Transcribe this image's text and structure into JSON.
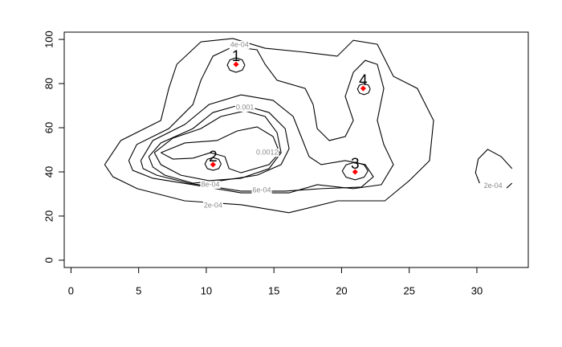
{
  "chart_data": {
    "type": "contour",
    "xlim": [
      -0.5,
      33.8
    ],
    "ylim": [
      -3.3,
      103.3
    ],
    "xticks": [
      0,
      5,
      10,
      15,
      20,
      25,
      30
    ],
    "yticks": [
      0,
      20,
      40,
      60,
      80,
      100
    ],
    "contours": [
      {
        "label": "2e-04",
        "label_x": 10.5,
        "label_y": 24.7,
        "paths": [
          {
            "x": [
              2.49,
              3.68,
              6.64,
              7.23,
              7.82,
              9.6,
              11.97,
              14.35,
              17.3,
              19.68,
              20.87,
              22.64,
              23.83,
              25.6,
              26.8,
              26.5,
              25.0,
              23.2,
              19.7,
              16.1,
              12.6,
              8.4,
              4.9,
              3.1,
              2.49
            ],
            "y": [
              43.3,
              54.2,
              63.3,
              77.8,
              88.7,
              98.9,
              100.4,
              96,
              94.2,
              92.4,
              99.6,
              97.8,
              83.3,
              77.8,
              63.3,
              45.1,
              36,
              26.9,
              26.9,
              21.5,
              25.1,
              26.9,
              32.4,
              37.8,
              43.3
            ]
          }
        ]
      },
      {
        "label": "2e-04",
        "label_x": 31.2,
        "label_y": 33.5,
        "paths": [
          {
            "x": [
              32.6,
              31.8,
              30.8,
              30.1,
              29.9,
              30.2
            ],
            "y": [
              41.5,
              46.9,
              50.2,
              45.8,
              39.6,
              34.9
            ]
          },
          {
            "x": [
              32.2,
              32.6
            ],
            "y": [
              32.7,
              34.9
            ]
          }
        ]
      },
      {
        "label": "4e-04",
        "label_x": 12.45,
        "label_y": 97.5,
        "paths": [
          {
            "x": [
              4.27,
              4.86,
              7.23,
              9.01,
              9.6,
              10.49,
              11.97,
              13.75,
              14.35,
              15.23,
              17.31,
              17.9,
              18.2,
              19.09,
              20.27,
              20.87,
              20.27,
              20.87,
              21.75,
              22.64,
              23.12,
              22.64,
              23.12,
              23.83,
              22.94,
              20.87,
              18.2,
              16.12,
              12.57,
              9.01,
              6.05,
              4.56,
              4.27
            ],
            "y": [
              45.1,
              52.4,
              59.6,
              70.5,
              81.5,
              92.4,
              96.7,
              95.3,
              88.7,
              81.5,
              77.8,
              70.5,
              59.6,
              54.2,
              56,
              63.3,
              74.2,
              85.1,
              90.5,
              88.7,
              77.8,
              63.3,
              52.4,
              43.3,
              34.2,
              32.4,
              34.2,
              30.5,
              30.5,
              34.2,
              37.1,
              40.7,
              45.1
            ]
          }
        ]
      },
      {
        "label": "6e-04",
        "label_x": 14.1,
        "label_y": 31.6,
        "paths": [
          {
            "x": [
              5.16,
              6.05,
              8.42,
              10.2,
              12.57,
              14.94,
              16.42,
              17.01,
              17.6,
              18.49,
              20.27,
              21.75,
              22.35,
              21.46,
              18.49,
              15.83,
              12.57,
              8.71,
              6.34,
              5.33,
              5.16
            ],
            "y": [
              45.1,
              54.2,
              61.5,
              70.5,
              74.9,
              72.4,
              65.1,
              56,
              46.9,
              43.3,
              45.1,
              43.3,
              37.8,
              33.1,
              32.4,
              31.3,
              31.3,
              34.9,
              38.5,
              41.5,
              45.1
            ]
          }
        ]
      },
      {
        "label": "8e-04",
        "label_x": 10.3,
        "label_y": 34.2,
        "paths": [
          {
            "x": [
              5.75,
              6.64,
              9.01,
              10.49,
              12.57,
              14.64,
              15.83,
              16.12,
              15.53,
              13.75,
              11.08,
              9.01,
              6.94,
              6.05,
              5.75
            ],
            "y": [
              46.9,
              53.1,
              59.6,
              66.9,
              70.5,
              66.9,
              59.6,
              50.5,
              43.3,
              38.5,
              36,
              34.9,
              38.5,
              42.2,
              46.9
            ]
          }
        ]
      },
      {
        "label": "0.001",
        "label_x": 12.86,
        "label_y": 69.1,
        "paths": [
          {
            "x": [
              6.16,
              7.53,
              9.6,
              11.08,
              12.86,
              14.35,
              15.23,
              15.53,
              14.64,
              12.57,
              10.2,
              8.12,
              6.64,
              6.16
            ],
            "y": [
              48.7,
              55.3,
              59.6,
              65.1,
              67.6,
              65.1,
              57.8,
              48.7,
              41.5,
              37.1,
              36,
              38.5,
              43.3,
              48.7
            ]
          }
        ]
      },
      {
        "label": "0.0012",
        "label_x": 14.5,
        "label_y": 48.7,
        "paths": [
          {
            "x": [
              6.64,
              8.42,
              10.79,
              12.27,
              13.75,
              14.94,
              15.42,
              14.64,
              12.57,
              11.68,
              11.38,
              10.31,
              9.01,
              7.53,
              6.64
            ],
            "y": [
              48.7,
              53.1,
              54.2,
              58.5,
              60.4,
              56,
              48.7,
              43.3,
              39.6,
              41.5,
              46.9,
              48.7,
              46.2,
              45.8,
              48.7
            ]
          }
        ]
      },
      {
        "paths": [
          {
            "x": [
              12.85,
              12.66,
              12.2,
              11.74,
              11.55,
              11.74,
              12.2,
              12.66,
              12.85
            ],
            "y": [
              88.4,
              90.7,
              91.7,
              90.7,
              88.4,
              86.1,
              85.1,
              86.1,
              88.4
            ]
          }
        ]
      },
      {
        "paths": [
          {
            "x": [
              11.1,
              10.92,
              10.5,
              10.08,
              9.9,
              10.08,
              10.5,
              10.92,
              11.1
            ],
            "y": [
              43.6,
              45.7,
              46.5,
              45.7,
              43.6,
              41.5,
              40.7,
              41.5,
              43.6
            ]
          }
        ]
      },
      {
        "paths": [
          {
            "x": [
              21.95,
              21.67,
              21,
              20.33,
              20.05,
              20.33,
              21,
              21.67,
              21.95
            ],
            "y": [
              40.4,
              43.2,
              44.4,
              43.2,
              40.4,
              37.6,
              36.4,
              37.6,
              40.4
            ]
          }
        ]
      },
      {
        "paths": [
          {
            "x": [
              22.12,
              21.98,
              21.65,
              21.32,
              21.18,
              21.32,
              21.65,
              21.98,
              22.12
            ],
            "y": [
              77.5,
              79.3,
              80,
              79.3,
              77.5,
              75.7,
              75,
              75.7,
              77.5
            ]
          }
        ]
      }
    ],
    "points": {
      "x": [
        12.2,
        10.5,
        21.0,
        21.6
      ],
      "y": [
        88.7,
        43.3,
        40.0,
        77.8
      ],
      "labels": [
        "1",
        "2",
        "3",
        "4"
      ],
      "color": "#ff0000"
    }
  }
}
